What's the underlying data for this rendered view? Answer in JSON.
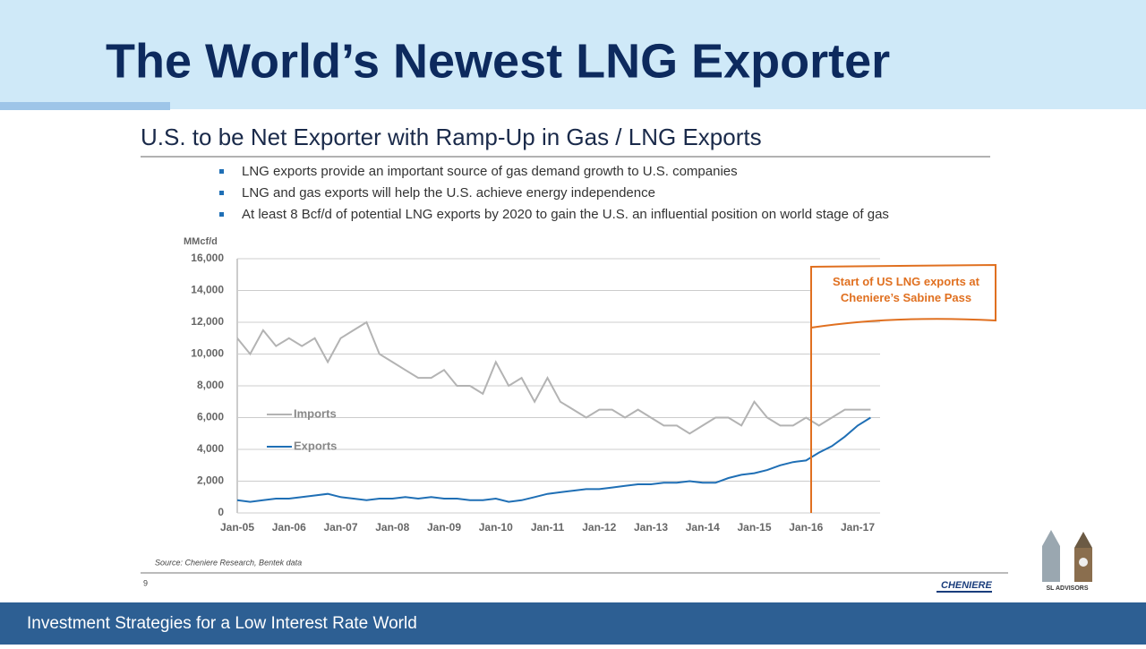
{
  "slide": {
    "title": "The World’s Newest LNG Exporter",
    "subtitle": "U.S. to be Net Exporter with Ramp-Up in Gas / LNG  Exports",
    "bullets": [
      "LNG exports provide an important source of gas demand growth to U.S. companies",
      "LNG and gas exports will help the U.S. achieve energy independence",
      "At least 8 Bcf/d of potential LNG exports by 2020 to gain the U.S. an influential position on world stage of gas"
    ],
    "source": "Source: Cheniere Research, Bentek data",
    "page_number": "9",
    "logo": "CHENIERE",
    "brand": "SL ADVISORS",
    "footer": "Investment Strategies for a Low Interest Rate World"
  },
  "chart_data": {
    "type": "line",
    "y_label": "MMcf/d",
    "annotation": "Start of US LNG exports at Cheniere’s Sabine Pass",
    "categories": [
      "Jan-05",
      null,
      null,
      null,
      "Jan-06",
      null,
      null,
      null,
      "Jan-07",
      null,
      null,
      null,
      "Jan-08",
      null,
      null,
      null,
      "Jan-09",
      null,
      null,
      null,
      "Jan-10",
      null,
      null,
      null,
      "Jan-11",
      null,
      null,
      null,
      "Jan-12",
      null,
      null,
      null,
      "Jan-13",
      null,
      null,
      null,
      "Jan-14",
      null,
      null,
      null,
      "Jan-15",
      null,
      null,
      null,
      "Jan-16",
      null,
      null,
      null,
      "Jan-17",
      null
    ],
    "series": [
      {
        "name": "Imports",
        "color": "#b3b3b3",
        "values": [
          11000,
          10000,
          11500,
          10500,
          11000,
          10500,
          11000,
          9500,
          11000,
          11500,
          12000,
          10000,
          9500,
          9000,
          8500,
          8500,
          9000,
          8000,
          8000,
          7500,
          9500,
          8000,
          8500,
          7000,
          8500,
          7000,
          6500,
          6000,
          6500,
          6500,
          6000,
          6500,
          6000,
          5500,
          5500,
          5000,
          5500,
          6000,
          6000,
          5500,
          7000,
          6000,
          5500,
          5500,
          6000,
          5500,
          6000,
          6500,
          6500,
          6500
        ]
      },
      {
        "name": "Exports",
        "color": "#1f6fb5",
        "values": [
          800,
          700,
          800,
          900,
          900,
          1000,
          1100,
          1200,
          1000,
          900,
          800,
          900,
          900,
          1000,
          900,
          1000,
          900,
          900,
          800,
          800,
          900,
          700,
          800,
          1000,
          1200,
          1300,
          1400,
          1500,
          1500,
          1600,
          1700,
          1800,
          1800,
          1900,
          1900,
          2000,
          1900,
          1900,
          2200,
          2400,
          2500,
          2700,
          3000,
          3200,
          3300,
          3800,
          4200,
          4800,
          5500,
          6000
        ]
      }
    ],
    "ylim": [
      0,
      16000
    ],
    "yticks": [
      0,
      {
        "value": 2000,
        "label": "2,000"
      },
      {
        "value": 4000,
        "label": "4,000"
      },
      {
        "value": 6000,
        "label": "6,000"
      },
      {
        "value": 8000,
        "label": "8,000"
      },
      {
        "value": 10000,
        "label": "10,000"
      },
      {
        "value": 12000,
        "label": "12,000"
      },
      {
        "value": 14000,
        "label": "14,000"
      },
      {
        "value": 16000,
        "label": "16,000"
      }
    ],
    "grid": true
  }
}
